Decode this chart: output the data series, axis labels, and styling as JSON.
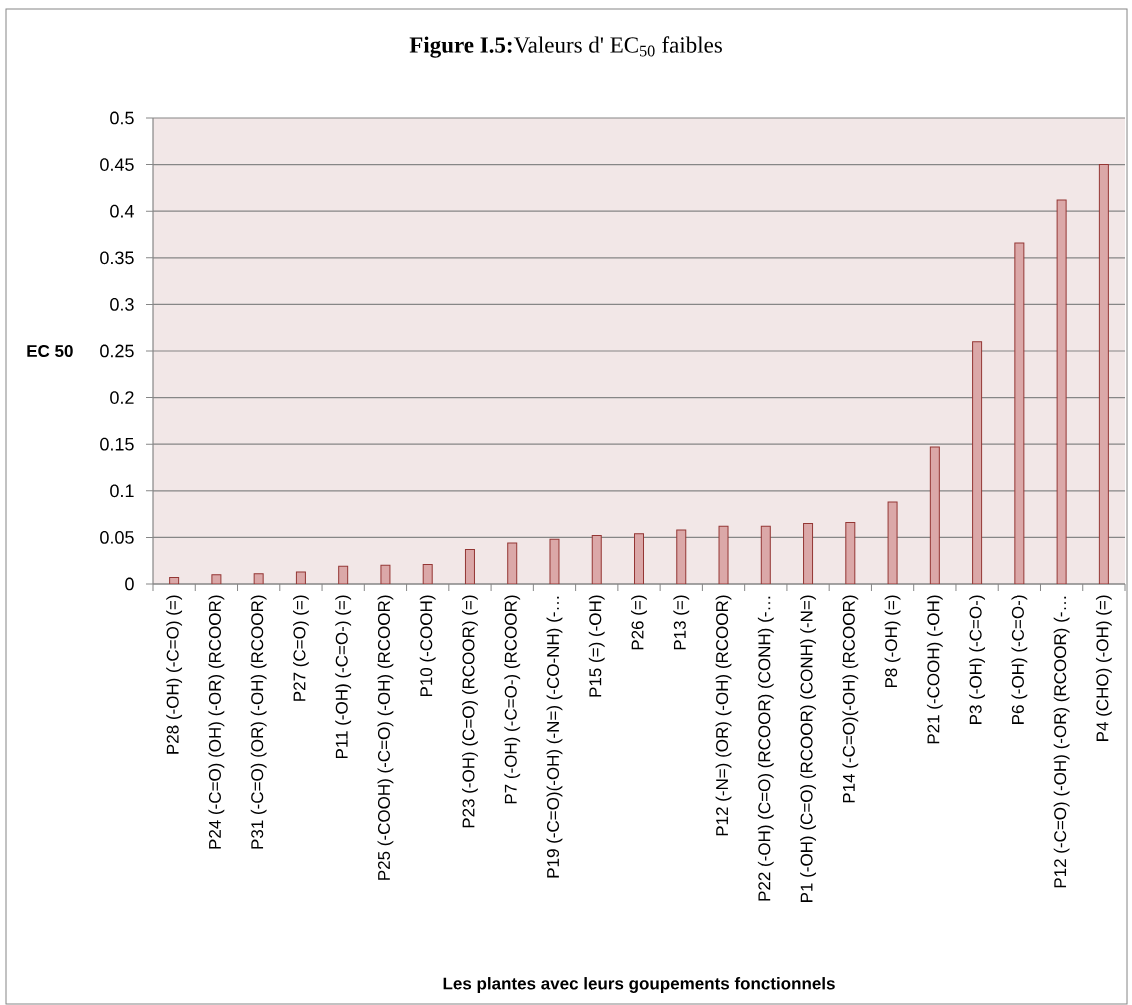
{
  "chart_data": {
    "type": "bar",
    "title": "**Figure I.5:**Valeurs d' EC$_{50}$ faibles",
    "xlabel": "Les plantes avec leurs goupements fonctionnels",
    "ylabel": "EC 50",
    "categories": [
      "P28 (-OH) (-C=O) (=)",
      "P24 (-C=O) (OH) (-OR) (RCOOR)",
      "P31 (-C=O) (OR) (-OH) (RCOOR)",
      "P27 (C=O) (=)",
      "P11 (-OH) (-C=O-) (=)",
      "P25 (-COOH) (-C=O) (-OH) (RCOOR)",
      "P10 (-COOH)",
      "P23 (-OH) (C=O) (RCOOR) (=)",
      "P7 (-OH) (-C=O-) (RCOOR)",
      "P19 (-C=O)(-OH) (-N=) (-CO-NH) (-…",
      "P15 (=) (-OH)",
      "P26 (=)",
      "P13 (=)",
      "P12 (-N=) (OR) (-OH) (RCOOR)",
      "P22 (-OH) (C=O) (RCOOR) (CONH) (-…",
      "P1 (-OH) (C=O) (RCOOR) (CONH) (-N=)",
      "P14 (-C=O)(-OH) (RCOOR)",
      "P8 (-OH) (=)",
      "P21 (-COOH) (-OH)",
      "P3 (-OH) (-C=O-)",
      "P6 (-OH) (-C=O-)",
      "P12 (-C=O) (-OH) (-OR) (RCOOR) (-…",
      "P4 (CHO) (-OH) (=)"
    ],
    "values": [
      0.007,
      0.01,
      0.011,
      0.013,
      0.019,
      0.02,
      0.021,
      0.037,
      0.044,
      0.048,
      0.052,
      0.054,
      0.058,
      0.062,
      0.062,
      0.065,
      0.066,
      0.088,
      0.147,
      0.26,
      0.366,
      0.412,
      0.45
    ],
    "color": "#dba8a8",
    "ylim": [
      0,
      0.5
    ],
    "yticks": [
      0,
      0.05,
      0.1,
      0.15,
      0.2,
      0.25,
      0.3,
      0.35,
      0.4,
      0.45,
      0.5
    ],
    "grid": "y"
  }
}
